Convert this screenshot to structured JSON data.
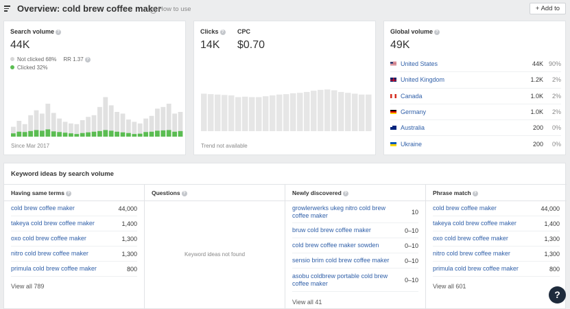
{
  "header": {
    "title": "Overview: cold brew coffee maker",
    "how_to_use": "How to use",
    "add_to": "+ Add to"
  },
  "search_volume": {
    "label": "Search volume",
    "value": "44K",
    "not_clicked": "Not clicked 68%",
    "rr": "RR 1.37",
    "clicked": "Clicked 32%",
    "since": "Since Mar 2017",
    "colors": {
      "clicked": "#5bbd52",
      "not_clicked": "#e1e1e1"
    },
    "bars_total": [
      30,
      48,
      38,
      65,
      80,
      70,
      100,
      72,
      55,
      45,
      40,
      38,
      50,
      60,
      65,
      90,
      120,
      95,
      75,
      70,
      52,
      45,
      40,
      55,
      63,
      85,
      90,
      100,
      70,
      75
    ],
    "bars_clicked": [
      10,
      15,
      14,
      17,
      20,
      18,
      22,
      16,
      14,
      12,
      10,
      8,
      11,
      13,
      15,
      17,
      20,
      18,
      15,
      13,
      11,
      8,
      9,
      14,
      15,
      18,
      19,
      20,
      15,
      17
    ]
  },
  "clicks": {
    "clicks_label": "Clicks",
    "clicks_value": "14K",
    "cpc_label": "CPC",
    "cpc_value": "$0.70",
    "trend": "Trend not available",
    "bars": [
      88,
      87,
      86,
      85,
      84,
      80,
      81,
      80,
      80,
      82,
      84,
      86,
      87,
      89,
      90,
      92,
      95,
      97,
      98,
      96,
      92,
      90,
      88,
      86,
      86
    ]
  },
  "global_volume": {
    "label": "Global volume",
    "value": "49K",
    "countries": [
      {
        "name": "United States",
        "volume": "44K",
        "pct": "90%",
        "flag": "us"
      },
      {
        "name": "United Kingdom",
        "volume": "1.2K",
        "pct": "2%",
        "flag": "uk"
      },
      {
        "name": "Canada",
        "volume": "1.0K",
        "pct": "2%",
        "flag": "ca"
      },
      {
        "name": "Germany",
        "volume": "1.0K",
        "pct": "2%",
        "flag": "de"
      },
      {
        "name": "Australia",
        "volume": "200",
        "pct": "0%",
        "flag": "au"
      },
      {
        "name": "Ukraine",
        "volume": "200",
        "pct": "0%",
        "flag": "ua"
      }
    ]
  },
  "keyword_ideas": {
    "title": "Keyword ideas by search volume",
    "same_terms": {
      "heading": "Having same terms",
      "rows": [
        {
          "kw": "cold brew coffee maker",
          "v": "44,000"
        },
        {
          "kw": "takeya cold brew coffee maker",
          "v": "1,400"
        },
        {
          "kw": "oxo cold brew coffee maker",
          "v": "1,300"
        },
        {
          "kw": "nitro cold brew coffee maker",
          "v": "1,300"
        },
        {
          "kw": "primula cold brew coffee maker",
          "v": "800"
        }
      ],
      "view_all": "View all 789"
    },
    "questions": {
      "heading": "Questions",
      "empty": "Keyword ideas not found"
    },
    "newly_discovered": {
      "heading": "Newly discovered",
      "rows": [
        {
          "kw": "growlerwerks ukeg nitro cold brew coffee maker",
          "v": "10"
        },
        {
          "kw": "bruw cold brew coffee maker",
          "v": "0–10"
        },
        {
          "kw": "cold brew coffee maker sowden",
          "v": "0–10"
        },
        {
          "kw": "sensio brim cold brew coffee maker",
          "v": "0–10"
        },
        {
          "kw": "asobu coldbrew portable cold brew coffee maker",
          "v": "0–10"
        }
      ],
      "view_all": "View all 41"
    },
    "phrase_match": {
      "heading": "Phrase match",
      "rows": [
        {
          "kw": "cold brew coffee maker",
          "v": "44,000"
        },
        {
          "kw": "takeya cold brew coffee maker",
          "v": "1,400"
        },
        {
          "kw": "oxo cold brew coffee maker",
          "v": "1,300"
        },
        {
          "kw": "nitro cold brew coffee maker",
          "v": "1,300"
        },
        {
          "kw": "primula cold brew coffee maker",
          "v": "800"
        }
      ],
      "view_all": "View all 601"
    }
  },
  "help": {
    "label": "?"
  }
}
